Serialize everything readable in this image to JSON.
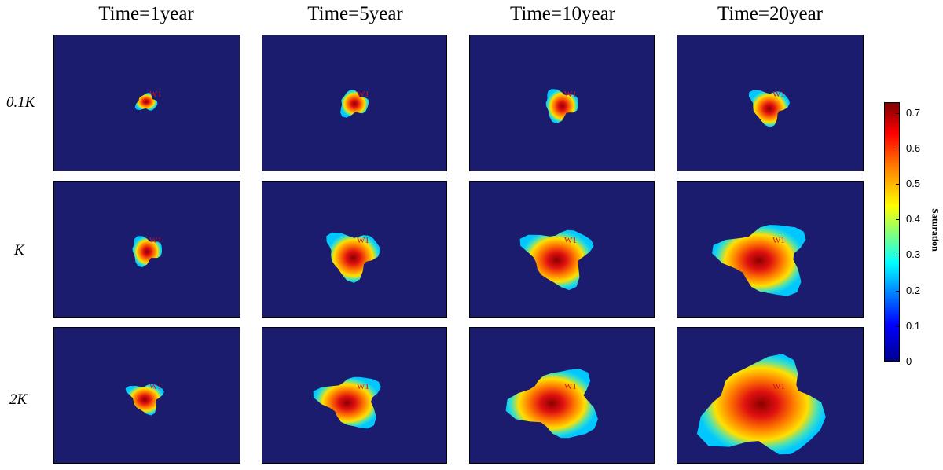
{
  "column_titles": [
    "Time=1year",
    "Time=5year",
    "Time=10year",
    "Time=20year"
  ],
  "row_labels": [
    "0.1K",
    "K",
    "2K"
  ],
  "well_label": "W1",
  "colorbar": {
    "title": "Saturation",
    "ticks": [
      "0.7",
      "0.6",
      "0.5",
      "0.4",
      "0.3",
      "0.2",
      "0.1",
      "0"
    ],
    "range": [
      0,
      0.73
    ],
    "colormap": [
      "#00008f",
      "#0000ff",
      "#00ffff",
      "#ffff00",
      "#ff8000",
      "#ff0000",
      "#800000"
    ]
  },
  "chart_data": {
    "type": "heatmap",
    "colorbar_label": "Saturation",
    "value_range": [
      0,
      0.73
    ],
    "columns": [
      "Time=1year",
      "Time=5year",
      "Time=10year",
      "Time=20year"
    ],
    "rows": [
      "0.1K",
      "K",
      "2K"
    ],
    "annotation": "W1",
    "plume_peak_saturation": [
      [
        0.5,
        0.65,
        0.68,
        0.7
      ],
      [
        0.65,
        0.7,
        0.72,
        0.73
      ],
      [
        0.68,
        0.72,
        0.73,
        0.73
      ]
    ]
  }
}
